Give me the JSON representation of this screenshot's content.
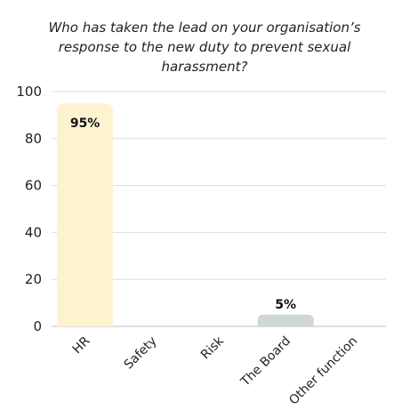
{
  "chart_data": {
    "type": "bar",
    "title": "Who has taken the lead on your organisation’s response to the new duty to prevent sexual harassment?",
    "categories": [
      "HR",
      "Safety",
      "Risk",
      "The Board",
      "Other function"
    ],
    "values": [
      95,
      0,
      0,
      5,
      0
    ],
    "data_labels": [
      "95%",
      "",
      "",
      "5%",
      ""
    ],
    "bar_colors": [
      "#fdf4cf",
      "#fdf4cf",
      "#fdf4cf",
      "#cfd8d3",
      "#fdf4cf"
    ],
    "ylim": [
      0,
      100
    ],
    "yticks": [
      0,
      20,
      40,
      60,
      80,
      100
    ],
    "xlabel": "",
    "ylabel": "",
    "grid": true,
    "legend": "none"
  }
}
